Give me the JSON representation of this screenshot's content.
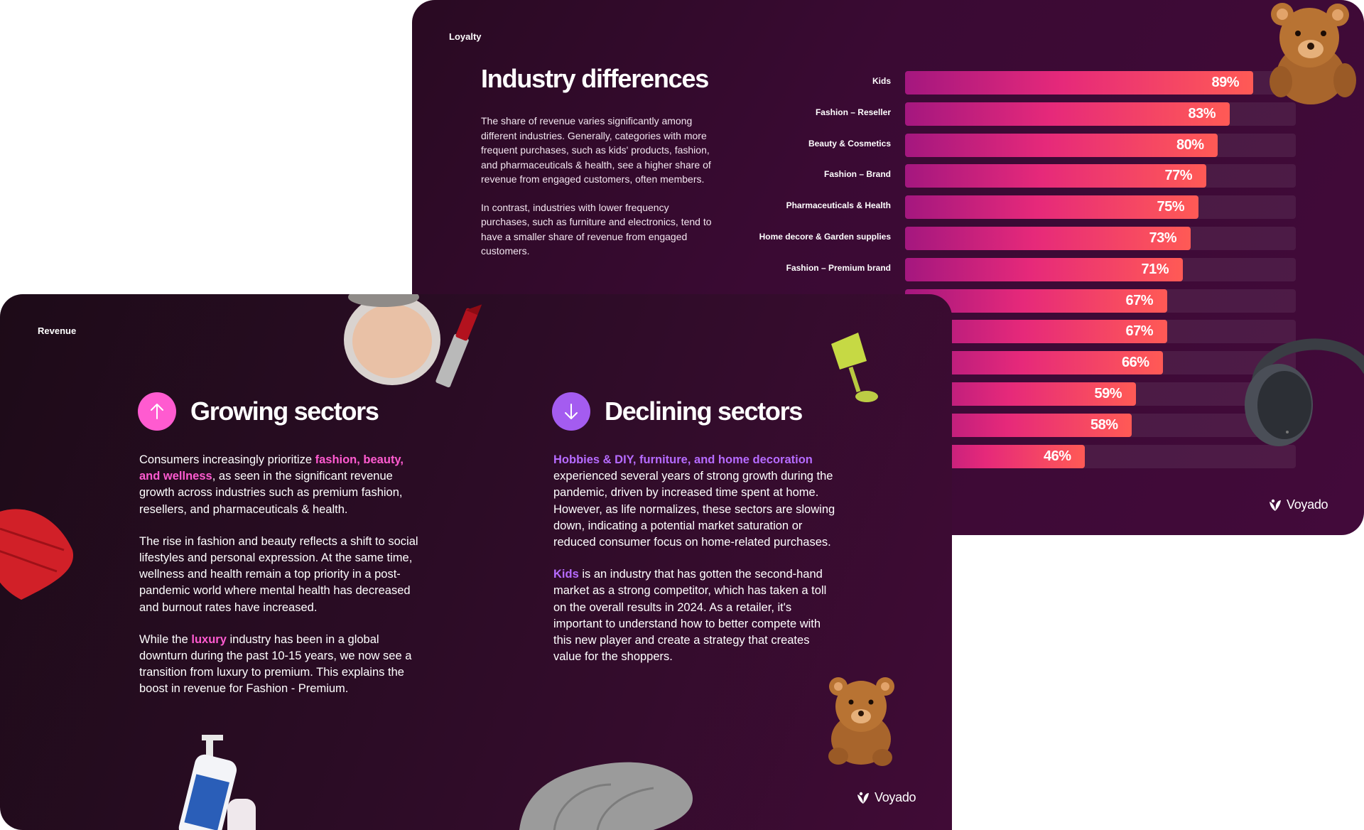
{
  "loyalty_slide": {
    "section_label": "Loyalty",
    "title": "Industry differences",
    "paragraph_1": "The share of revenue varies significantly among different industries. Generally, categories with more frequent purchases, such as kids' products, fashion, and pharmaceuticals & health, see a higher share of revenue from engaged customers, often members.",
    "paragraph_2": "In contrast, industries with lower frequency purchases, such as furniture and electronics, tend to have a smaller share of revenue from engaged customers.",
    "logo_text": "Voyado"
  },
  "chart_data": {
    "type": "bar",
    "orientation": "horizontal",
    "categories": [
      "Kids",
      "Fashion – Reseller",
      "Beauty & Cosmetics",
      "Fashion – Brand",
      "Pharmaceuticals & Health",
      "Home decore & Garden supplies",
      "Fashion – Premium brand",
      "",
      "",
      "",
      "",
      "",
      ""
    ],
    "values": [
      89,
      83,
      80,
      77,
      75,
      73,
      71,
      67,
      67,
      66,
      59,
      58,
      46
    ],
    "value_labels": [
      "89%",
      "83%",
      "80%",
      "77%",
      "75%",
      "73%",
      "71%",
      "67%",
      "67%",
      "66%",
      "59%",
      "58%",
      "46%"
    ],
    "xlim": [
      0,
      100
    ],
    "grid": false
  },
  "revenue_slide": {
    "section_label": "Revenue",
    "growing": {
      "title": "Growing sectors",
      "p1_a": "Consumers increasingly prioritize ",
      "p1_highlight": "fashion, beauty, and wellness",
      "p1_b": ", as seen in the significant revenue growth across industries such as premium fashion, resellers, and pharmaceuticals & health.",
      "p2": "The rise in fashion and beauty reflects a shift to social lifestyles and personal expression. At the same time, wellness and health remain a top priority in a post-pandemic world where mental health has decreased and burnout rates have increased.",
      "p3_a": "While the ",
      "p3_highlight": "luxury",
      "p3_b": " industry has been in a global downturn during the past 10-15 years, we now see a transition from luxury to premium. This explains the boost in revenue for Fashion - Premium."
    },
    "declining": {
      "title": "Declining sectors",
      "p1_highlight": "Hobbies & DIY, furniture, and home decoration",
      "p1_b": " experienced several years of strong growth during the pandemic, driven by increased time spent at home. However, as life normalizes, these sectors are slowing down, indicating a potential market saturation or reduced consumer focus on home-related purchases.",
      "p2_highlight": "Kids",
      "p2_b": " is an industry that has gotten the second-hand market as a strong competitor, which has taken a toll on the overall results in 2024. As a retailer, it's important to understand how to better compete with this new player and create a strategy that creates value for the shoppers."
    },
    "logo_text": "Voyado"
  },
  "colors": {
    "accent_pink": "#ff5bd0",
    "accent_purple": "#b66bff",
    "bar_gradient_start": "#a4177f",
    "bar_gradient_end": "#ff5a55",
    "slide_bg": "#3a0a33"
  },
  "icons": [
    "arrow-up-icon",
    "arrow-down-icon",
    "voyado-logo-icon"
  ],
  "decorations": [
    "teddy-bear-image",
    "headphones-image",
    "compact-powder-image",
    "lipstick-image",
    "lamp-image",
    "puffer-jacket-image",
    "shampoo-bottle-image",
    "sofa-image"
  ]
}
